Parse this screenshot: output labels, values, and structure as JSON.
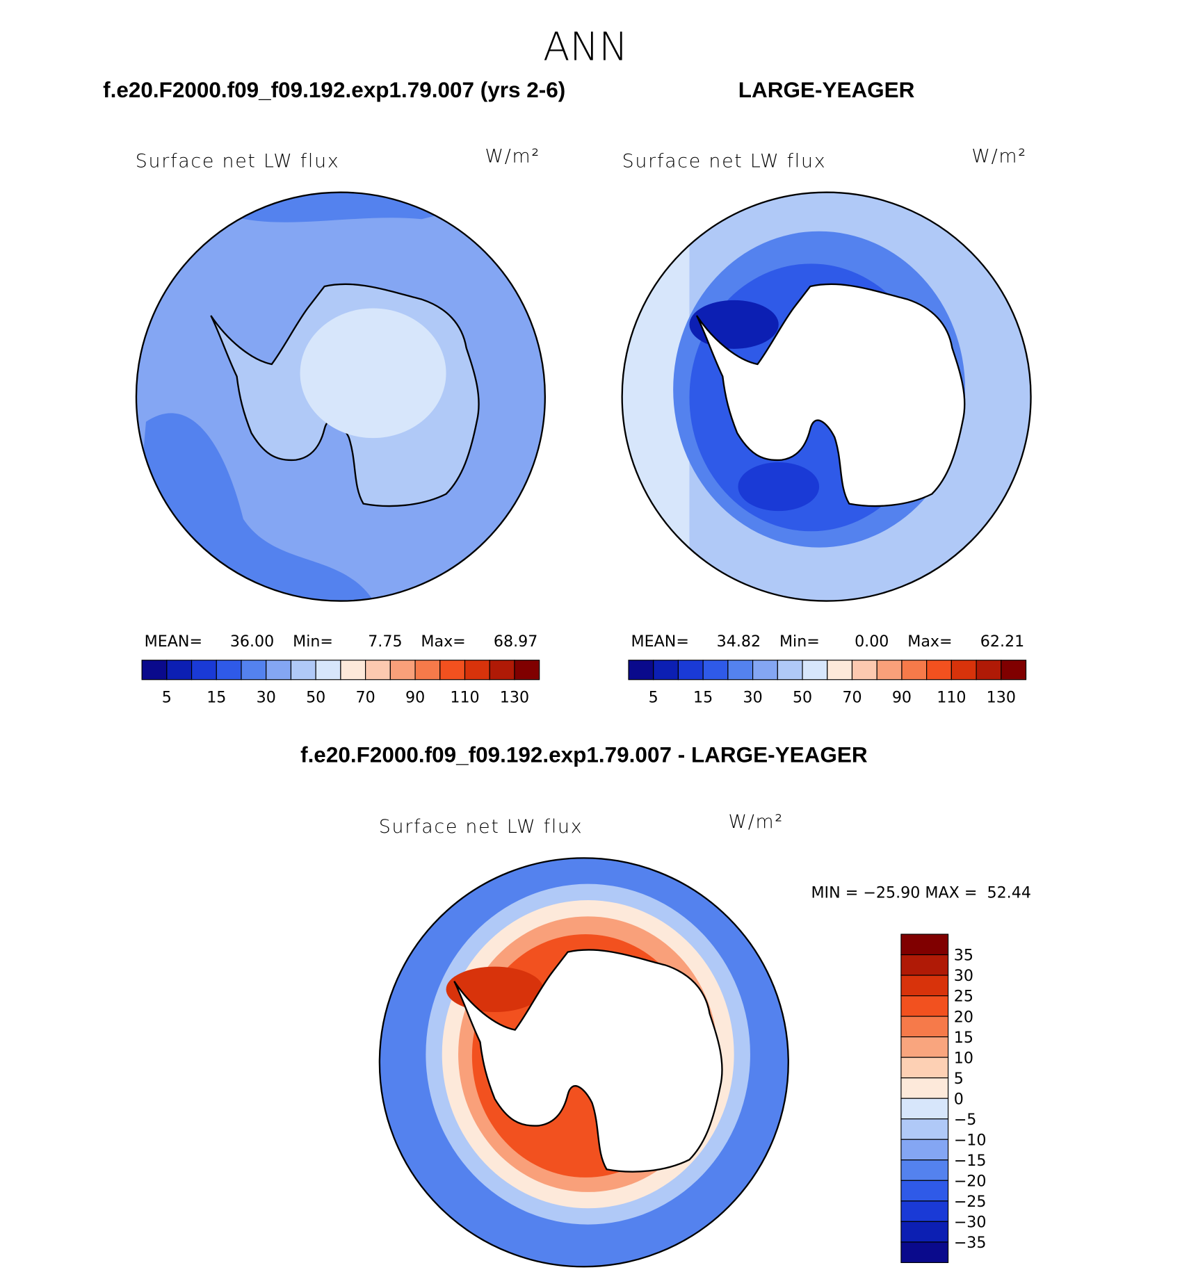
{
  "title": "ANN",
  "panels": [
    {
      "case": "f.e20.F2000.f09_f09.192.exp1.79.007 (yrs 2-6)",
      "variable": "Surface net LW flux",
      "units": "W/m²",
      "stats": [
        {
          "name": "MEAN=",
          "value": "36.00"
        },
        {
          "name": "Min=",
          "value": "7.75"
        },
        {
          "name": "Max=",
          "value": "68.97"
        }
      ]
    },
    {
      "case": "LARGE-YEAGER",
      "variable": "Surface net LW flux",
      "units": "W/m²",
      "stats": [
        {
          "name": "MEAN=",
          "value": "34.82"
        },
        {
          "name": "Min=",
          "value": "0.00"
        },
        {
          "name": "Max=",
          "value": "62.21"
        }
      ]
    }
  ],
  "colorbar": {
    "colors": [
      "#0a0a8c",
      "#0c1fb3",
      "#1a3ad6",
      "#2f5ae8",
      "#5482ee",
      "#84a6f3",
      "#b0c9f7",
      "#d7e6fb",
      "#fde9da",
      "#fcc9b0",
      "#f9a07a",
      "#f67a4a",
      "#f2511f",
      "#d8330b",
      "#b01a06",
      "#800000"
    ],
    "ticks": [
      5,
      15,
      30,
      50,
      70,
      90,
      110,
      130
    ]
  },
  "difference": {
    "title": "f.e20.F2000.f09_f09.192.exp1.79.007 - LARGE-YEAGER",
    "variable": "Surface net LW flux",
    "units": "W/m²",
    "range": "MIN = −25.90 MAX =  52.44",
    "colorbar": {
      "colors": [
        "#800000",
        "#b01a06",
        "#d8330b",
        "#f2511f",
        "#f67a4a",
        "#f9a57e",
        "#fdd0b4",
        "#fde9da",
        "#d7e6fb",
        "#b0c9f7",
        "#84a6f3",
        "#5482ee",
        "#2f5ae8",
        "#1a3ad6",
        "#0c1fb3",
        "#0a0a8c"
      ],
      "ticks": [
        35,
        30,
        25,
        20,
        15,
        10,
        5,
        0,
        {
          "value": -5,
          "label": "−5"
        },
        {
          "value": -10,
          "label": "−10"
        },
        {
          "value": -15,
          "label": "−15"
        },
        {
          "value": -20,
          "label": "−20"
        },
        {
          "value": -25,
          "label": "−25"
        },
        {
          "value": -30,
          "label": "−30"
        },
        {
          "value": -35,
          "label": "−35"
        }
      ]
    }
  }
}
